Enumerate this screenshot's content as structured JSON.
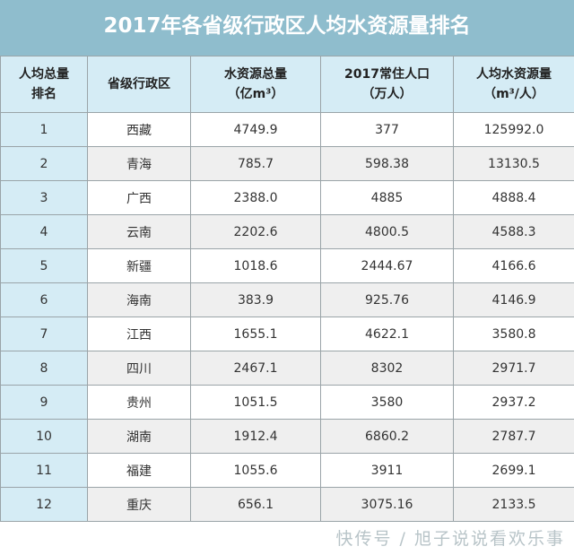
{
  "title": "2017年各省级行政区人均水资源量排名",
  "headers": [
    [
      "人均总量",
      "排名"
    ],
    [
      "省级行政区",
      ""
    ],
    [
      "水资源总量",
      "（亿m³）"
    ],
    [
      "2017常住人口",
      "（万人）"
    ],
    [
      "人均水资源量",
      "（m³/人）"
    ]
  ],
  "rows": [
    [
      "1",
      "西藏",
      "4749.9",
      "377",
      "125992.0"
    ],
    [
      "2",
      "青海",
      "785.7",
      "598.38",
      "13130.5"
    ],
    [
      "3",
      "广西",
      "2388.0",
      "4885",
      "4888.4"
    ],
    [
      "4",
      "云南",
      "2202.6",
      "4800.5",
      "4588.3"
    ],
    [
      "5",
      "新疆",
      "1018.6",
      "2444.67",
      "4166.6"
    ],
    [
      "6",
      "海南",
      "383.9",
      "925.76",
      "4146.9"
    ],
    [
      "7",
      "江西",
      "1655.1",
      "4622.1",
      "3580.8"
    ],
    [
      "8",
      "四川",
      "2467.1",
      "8302",
      "2971.7"
    ],
    [
      "9",
      "贵州",
      "1051.5",
      "3580",
      "2937.2"
    ],
    [
      "10",
      "湖南",
      "1912.4",
      "6860.2",
      "2787.7"
    ],
    [
      "11",
      "福建",
      "1055.6",
      "3911",
      "2699.1"
    ],
    [
      "12",
      "重庆",
      "656.1",
      "3075.16",
      "2133.5"
    ]
  ],
  "watermark": "快传号 / 旭子说说看欢乐事",
  "colors": {
    "title_bg": "#8fbdcd",
    "header_bg": "#d5ecf5",
    "even_row": "#efefef"
  }
}
